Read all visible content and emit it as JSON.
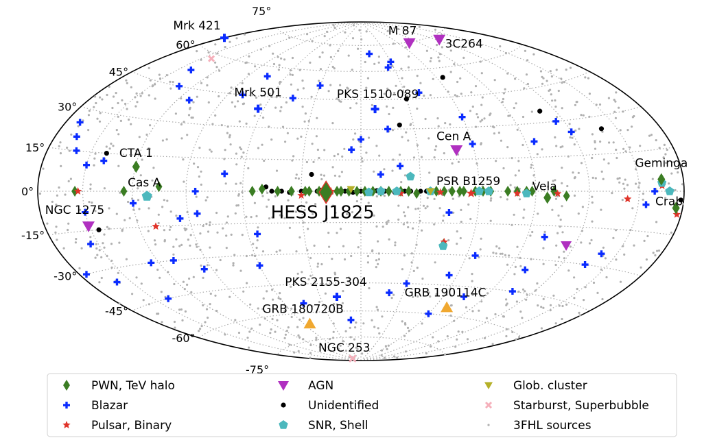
{
  "chart_data": {
    "type": "scatter",
    "projection": "hammer-aitoff",
    "frame": "galactic",
    "center_longitude_deg": 0,
    "longitude_increases": "left",
    "grid": true,
    "graticule": {
      "lon_step_deg": 30,
      "lat_step_deg": 15
    },
    "lat_ticks": [
      {
        "lat": 75,
        "text": "75°"
      },
      {
        "lat": 60,
        "text": "60°"
      },
      {
        "lat": 45,
        "text": "45°"
      },
      {
        "lat": 30,
        "text": "30°"
      },
      {
        "lat": 15,
        "text": "15°"
      },
      {
        "lat": 0,
        "text": "0°"
      },
      {
        "lat": -15,
        "text": "-15°"
      },
      {
        "lat": -30,
        "text": "-30°"
      },
      {
        "lat": -45,
        "text": "-45°"
      },
      {
        "lat": -60,
        "text": "-60°"
      },
      {
        "lat": -75,
        "text": "-75°"
      }
    ],
    "legend": {
      "position": "bottom",
      "columns": 3,
      "entries": [
        {
          "key": "pwn",
          "label": "PWN, TeV halo"
        },
        {
          "key": "blazar",
          "label": "Blazar"
        },
        {
          "key": "pulsar",
          "label": "Pulsar, Binary"
        },
        {
          "key": "agn",
          "label": "AGN"
        },
        {
          "key": "unid",
          "label": "Unidentified"
        },
        {
          "key": "snr",
          "label": "SNR, Shell"
        },
        {
          "key": "glob",
          "label": "Glob. cluster"
        },
        {
          "key": "starburst",
          "label": "Starburst, Superbubble"
        },
        {
          "key": "fhl",
          "label": "3FHL sources"
        }
      ]
    },
    "styles": {
      "pwn": {
        "marker": "diamond",
        "color": "#3b7d23"
      },
      "blazar": {
        "marker": "plus",
        "color": "#0a2bff"
      },
      "pulsar": {
        "marker": "star",
        "color": "#e0342a"
      },
      "agn": {
        "marker": "triangle-down",
        "color": "#b030c0"
      },
      "unid": {
        "marker": "circle",
        "color": "#000000"
      },
      "snr": {
        "marker": "pentagon",
        "color": "#4cb8bd"
      },
      "glob": {
        "marker": "triangle-down",
        "color": "#b5b028"
      },
      "starburst": {
        "marker": "x",
        "color": "#f5b0bb"
      },
      "fhl": {
        "marker": "dot",
        "color": "#b0b0b0"
      },
      "grb": {
        "marker": "triangle-up",
        "color": "#f0a830"
      }
    },
    "highlight": {
      "name": "HESS J1825",
      "l": 17.5,
      "b": -0.5,
      "marker": "diamond",
      "color": "#3b7d23",
      "edge": "#e0342a"
    },
    "sources": [
      {
        "name": "Mrk 421",
        "l": 179.8,
        "b": 65.0,
        "class": "blazar"
      },
      {
        "name": "M 87",
        "l": 283.8,
        "b": 74.5,
        "class": "agn"
      },
      {
        "name": "3C264",
        "l": 235.7,
        "b": 73.0,
        "class": "agn"
      },
      {
        "name": "Mrk 501",
        "l": 63.6,
        "b": 38.9,
        "class": "blazar"
      },
      {
        "name": "PKS 1510-089",
        "l": 351.3,
        "b": 40.1,
        "class": "blazar"
      },
      {
        "name": "Cen A",
        "l": 309.5,
        "b": 19.4,
        "class": "agn"
      },
      {
        "name": "CTA 1",
        "l": 119.6,
        "b": 10.2,
        "class": "pwn"
      },
      {
        "name": "Cas A",
        "l": 111.7,
        "b": -2.1,
        "class": "snr"
      },
      {
        "name": "Geminga",
        "l": 195.1,
        "b": 4.3,
        "class": "pwn"
      },
      {
        "name": "PSR B1259",
        "l": 304.2,
        "b": -1.0,
        "class": "pulsar"
      },
      {
        "name": "Vela",
        "l": 263.6,
        "b": -2.8,
        "class": "pwn"
      },
      {
        "name": "Crab",
        "l": 184.6,
        "b": -5.8,
        "class": "pwn"
      },
      {
        "name": "NGC 1275",
        "l": 150.6,
        "b": -13.3,
        "class": "agn"
      },
      {
        "name": "PKS 2155-304",
        "l": 17.7,
        "b": -52.2,
        "class": "blazar"
      },
      {
        "name": "GRB 180720B",
        "l": 54.0,
        "b": -66.0,
        "class": "grb"
      },
      {
        "name": "GRB 190114C",
        "l": 290.0,
        "b": -56.0,
        "class": "grb"
      },
      {
        "name": "NGC 253",
        "l": 97.4,
        "b": -88.0,
        "class": "starburst"
      }
    ],
    "catalog": [
      {
        "class": "blazar",
        "points": [
          [
            140,
            52
          ],
          [
            130,
            45
          ],
          [
            112,
            40
          ],
          [
            80,
            45
          ],
          [
            75,
            55
          ],
          [
            45,
            45
          ],
          [
            30,
            52
          ],
          [
            -25,
            62
          ],
          [
            -40,
            48
          ],
          [
            -60,
            35
          ],
          [
            -115,
            30
          ],
          [
            -120,
            25
          ],
          [
            -95,
            22
          ],
          [
            -60,
            22
          ],
          [
            -45,
            -10
          ],
          [
            -55,
            -40
          ],
          [
            -65,
            -30
          ],
          [
            -100,
            -20
          ],
          [
            -140,
            -25
          ],
          [
            -155,
            -5
          ],
          [
            -160,
            0
          ],
          [
            165,
            20
          ],
          [
            170,
            25
          ],
          [
            160,
            15
          ],
          [
            150,
            10
          ],
          [
            140,
            12
          ],
          [
            120,
            -5
          ],
          [
            95,
            -12
          ],
          [
            85,
            0
          ],
          [
            85,
            -10
          ],
          [
            55,
            -20
          ],
          [
            60,
            -35
          ],
          [
            10,
            -65
          ],
          [
            -20,
            -50
          ],
          [
            -30,
            -45
          ],
          [
            -60,
            -60
          ],
          [
            -75,
            -50
          ],
          [
            -100,
            -35
          ],
          [
            -105,
            -45
          ],
          [
            -135,
            -30
          ],
          [
            95,
            -35
          ],
          [
            110,
            -30
          ],
          [
            155,
            -20
          ],
          [
            160,
            -35
          ],
          [
            175,
            -30
          ],
          [
            140,
            -45
          ],
          [
            125,
            -30
          ],
          [
            0,
            25
          ],
          [
            5,
            20
          ],
          [
            -20,
            12
          ],
          [
            -10,
            8
          ],
          [
            -30,
            65
          ],
          [
            -10,
            70
          ],
          [
            45,
            -55
          ],
          [
            -15,
            30
          ],
          [
            70,
            8
          ],
          [
            150,
            -8
          ]
        ]
      },
      {
        "class": "unid",
        "points": [
          [
            -30,
            45
          ],
          [
            -65,
            55
          ],
          [
            -110,
            35
          ],
          [
            -140,
            25
          ],
          [
            -178,
            -3
          ],
          [
            140,
            15
          ],
          [
            145,
            -15
          ],
          [
            25,
            8
          ],
          [
            -22,
            32
          ],
          [
            48,
            2
          ],
          [
            45,
            0
          ],
          [
            40,
            0
          ],
          [
            36,
            -0.5
          ],
          [
            30,
            0
          ],
          [
            22,
            0
          ],
          [
            20,
            0.5
          ],
          [
            15,
            -0.5
          ],
          [
            12,
            0
          ],
          [
            8,
            0
          ],
          [
            4,
            -0.5
          ],
          [
            0,
            0
          ],
          [
            -4,
            0
          ],
          [
            -8,
            0.3
          ],
          [
            -12,
            0
          ],
          [
            -17,
            -0.5
          ],
          [
            -22,
            0
          ],
          [
            -25,
            0
          ],
          [
            -30,
            0
          ],
          [
            -33,
            0
          ],
          [
            -36,
            0
          ]
        ]
      },
      {
        "class": "pwn",
        "points": [
          [
            155,
            0
          ],
          [
            125,
            0
          ],
          [
            105,
            2
          ],
          [
            55,
            0
          ],
          [
            50,
            1
          ],
          [
            42,
            0
          ],
          [
            35,
            0
          ],
          [
            28,
            0
          ],
          [
            26,
            0
          ],
          [
            21,
            0
          ],
          [
            18,
            0
          ],
          [
            12,
            0
          ],
          [
            10,
            0
          ],
          [
            6,
            0
          ],
          [
            2,
            0
          ],
          [
            -2,
            0
          ],
          [
            -6,
            0
          ],
          [
            -10,
            0
          ],
          [
            -14,
            0
          ],
          [
            -20,
            0
          ],
          [
            -24,
            0
          ],
          [
            -28,
            -1
          ],
          [
            -38,
            0
          ],
          [
            -42,
            0
          ],
          [
            -46,
            0
          ],
          [
            -50,
            0
          ],
          [
            -52,
            0
          ],
          [
            -58,
            0
          ],
          [
            -62,
            0
          ],
          [
            -66,
            0
          ],
          [
            -75,
            0
          ],
          [
            -80,
            0
          ],
          [
            -85,
            0
          ],
          [
            -88,
            0
          ],
          [
            -100,
            0
          ],
          [
            -107,
            -2
          ],
          [
            -45,
            -25
          ]
        ]
      },
      {
        "class": "pulsar",
        "points": [
          [
            153,
            0
          ],
          [
            15,
            0
          ],
          [
            -20,
            -1
          ],
          [
            -80,
            -1
          ],
          [
            -102,
            -1
          ],
          [
            -143,
            -3
          ],
          [
            -165,
            2
          ],
          [
            -177,
            -8
          ],
          [
            110,
            -15
          ],
          [
            -45,
            -24
          ],
          [
            -40,
            -0.5
          ],
          [
            30,
            -2
          ]
        ]
      },
      {
        "class": "snr",
        "points": [
          [
            -25,
            7
          ],
          [
            -10,
            0
          ],
          [
            -4,
            -0.5
          ],
          [
            -18,
            0
          ],
          [
            -35,
            0
          ],
          [
            -60,
            0
          ],
          [
            -65,
            0
          ],
          [
            -85,
            -1
          ],
          [
            -45,
            -26
          ],
          [
            -165,
            3
          ],
          [
            -170,
            0
          ]
        ]
      },
      {
        "class": "agn",
        "points": [
          [
            -115,
            -23
          ]
        ]
      },
      {
        "class": "glob",
        "points": [
          [
            5,
            1
          ],
          [
            -35,
            0
          ]
        ]
      },
      {
        "class": "starburst",
        "points": [
          [
            142,
            58
          ]
        ]
      }
    ]
  }
}
